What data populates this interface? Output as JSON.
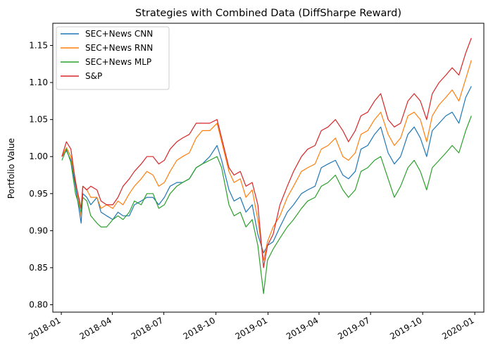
{
  "chart_data": {
    "type": "line",
    "title": "Strategies with Combined Data (DiffSharpe Reward)",
    "xlabel": "",
    "ylabel": "Portfolio Value",
    "xlim": [
      "2017-12-17",
      "2020-01-17"
    ],
    "ylim": [
      0.79,
      1.18
    ],
    "grid": false,
    "legend_position": "top-left",
    "xticks": [
      {
        "date": "2018-01-01",
        "label": "2018-01"
      },
      {
        "date": "2018-04-01",
        "label": "2018-04"
      },
      {
        "date": "2018-07-01",
        "label": "2018-07"
      },
      {
        "date": "2018-10-01",
        "label": "2018-10"
      },
      {
        "date": "2019-01-01",
        "label": "2019-01"
      },
      {
        "date": "2019-04-01",
        "label": "2019-04"
      },
      {
        "date": "2019-07-01",
        "label": "2019-07"
      },
      {
        "date": "2019-10-01",
        "label": "2019-10"
      },
      {
        "date": "2020-01-01",
        "label": "2020-01"
      }
    ],
    "yticks": [
      {
        "value": 0.8,
        "label": "0.80"
      },
      {
        "value": 0.85,
        "label": "0.85"
      },
      {
        "value": 0.9,
        "label": "0.90"
      },
      {
        "value": 0.95,
        "label": "0.95"
      },
      {
        "value": 1.0,
        "label": "1.00"
      },
      {
        "value": 1.05,
        "label": "1.05"
      },
      {
        "value": 1.1,
        "label": "1.10"
      },
      {
        "value": 1.15,
        "label": "1.15"
      }
    ],
    "x": [
      "2018-01-02",
      "2018-01-10",
      "2018-01-18",
      "2018-01-26",
      "2018-02-05",
      "2018-02-08",
      "2018-02-15",
      "2018-02-22",
      "2018-03-05",
      "2018-03-12",
      "2018-03-22",
      "2018-04-02",
      "2018-04-11",
      "2018-04-20",
      "2018-05-01",
      "2018-05-10",
      "2018-05-22",
      "2018-06-01",
      "2018-06-12",
      "2018-06-22",
      "2018-07-02",
      "2018-07-12",
      "2018-07-24",
      "2018-08-03",
      "2018-08-15",
      "2018-08-27",
      "2018-09-07",
      "2018-09-20",
      "2018-10-03",
      "2018-10-11",
      "2018-10-24",
      "2018-11-02",
      "2018-11-13",
      "2018-11-23",
      "2018-12-04",
      "2018-12-14",
      "2018-12-24",
      "2018-12-31",
      "2019-01-10",
      "2019-01-22",
      "2019-02-04",
      "2019-02-15",
      "2019-03-01",
      "2019-03-12",
      "2019-03-25",
      "2019-04-05",
      "2019-04-17",
      "2019-04-30",
      "2019-05-13",
      "2019-05-23",
      "2019-06-04",
      "2019-06-14",
      "2019-06-26",
      "2019-07-08",
      "2019-07-19",
      "2019-08-01",
      "2019-08-12",
      "2019-08-23",
      "2019-09-05",
      "2019-09-16",
      "2019-09-27",
      "2019-10-08",
      "2019-10-18",
      "2019-10-30",
      "2019-11-11",
      "2019-11-22",
      "2019-12-04",
      "2019-12-16",
      "2019-12-26"
    ],
    "series": [
      {
        "name": "SEC+News CNN",
        "color": "#1f77b4",
        "values": [
          1.0,
          1.008,
          0.995,
          0.96,
          0.91,
          0.95,
          0.945,
          0.935,
          0.945,
          0.925,
          0.92,
          0.915,
          0.925,
          0.92,
          0.92,
          0.935,
          0.94,
          0.945,
          0.945,
          0.935,
          0.945,
          0.96,
          0.965,
          0.965,
          0.97,
          0.985,
          0.99,
          1.0,
          1.015,
          0.995,
          0.955,
          0.94,
          0.945,
          0.925,
          0.935,
          0.895,
          0.87,
          0.88,
          0.885,
          0.905,
          0.925,
          0.935,
          0.95,
          0.955,
          0.96,
          0.985,
          0.99,
          0.995,
          0.975,
          0.97,
          0.98,
          1.01,
          1.015,
          1.03,
          1.04,
          1.005,
          0.99,
          1.0,
          1.03,
          1.04,
          1.025,
          1.0,
          1.035,
          1.045,
          1.055,
          1.06,
          1.045,
          1.08,
          1.095
        ]
      },
      {
        "name": "SEC+News RNN",
        "color": "#ff7f0e",
        "values": [
          1.0,
          1.012,
          1.0,
          0.968,
          0.92,
          0.96,
          0.955,
          0.945,
          0.945,
          0.93,
          0.935,
          0.93,
          0.94,
          0.935,
          0.95,
          0.96,
          0.97,
          0.98,
          0.975,
          0.96,
          0.965,
          0.98,
          0.995,
          1.0,
          1.005,
          1.025,
          1.035,
          1.035,
          1.045,
          1.02,
          0.98,
          0.965,
          0.97,
          0.945,
          0.955,
          0.915,
          0.86,
          0.885,
          0.905,
          0.92,
          0.945,
          0.96,
          0.98,
          0.985,
          0.99,
          1.01,
          1.015,
          1.025,
          1.0,
          0.995,
          1.005,
          1.03,
          1.035,
          1.05,
          1.06,
          1.03,
          1.015,
          1.025,
          1.055,
          1.06,
          1.05,
          1.02,
          1.055,
          1.07,
          1.08,
          1.09,
          1.075,
          1.105,
          1.13
        ]
      },
      {
        "name": "SEC+News MLP",
        "color": "#2ca02c",
        "values": [
          0.995,
          1.01,
          0.992,
          0.95,
          0.925,
          0.945,
          0.94,
          0.92,
          0.91,
          0.905,
          0.905,
          0.915,
          0.92,
          0.915,
          0.925,
          0.94,
          0.935,
          0.95,
          0.95,
          0.93,
          0.935,
          0.95,
          0.96,
          0.965,
          0.97,
          0.985,
          0.99,
          0.995,
          1.0,
          0.985,
          0.935,
          0.92,
          0.925,
          0.905,
          0.915,
          0.88,
          0.815,
          0.86,
          0.875,
          0.89,
          0.905,
          0.915,
          0.93,
          0.94,
          0.945,
          0.96,
          0.965,
          0.975,
          0.955,
          0.945,
          0.955,
          0.98,
          0.985,
          0.995,
          1.0,
          0.97,
          0.945,
          0.96,
          0.985,
          0.995,
          0.98,
          0.955,
          0.985,
          0.995,
          1.005,
          1.015,
          1.005,
          1.035,
          1.055
        ]
      },
      {
        "name": "S&P",
        "color": "#d62728",
        "values": [
          1.0,
          1.02,
          1.01,
          0.965,
          0.93,
          0.96,
          0.955,
          0.96,
          0.955,
          0.94,
          0.935,
          0.935,
          0.945,
          0.96,
          0.97,
          0.98,
          0.99,
          1.0,
          1.0,
          0.99,
          0.995,
          1.01,
          1.02,
          1.025,
          1.03,
          1.045,
          1.045,
          1.045,
          1.05,
          1.025,
          0.985,
          0.975,
          0.98,
          0.96,
          0.965,
          0.935,
          0.85,
          0.88,
          0.895,
          0.935,
          0.96,
          0.98,
          1.0,
          1.01,
          1.015,
          1.035,
          1.04,
          1.05,
          1.035,
          1.02,
          1.035,
          1.055,
          1.06,
          1.075,
          1.085,
          1.05,
          1.04,
          1.045,
          1.075,
          1.085,
          1.075,
          1.05,
          1.085,
          1.1,
          1.11,
          1.12,
          1.11,
          1.14,
          1.16
        ]
      }
    ]
  }
}
